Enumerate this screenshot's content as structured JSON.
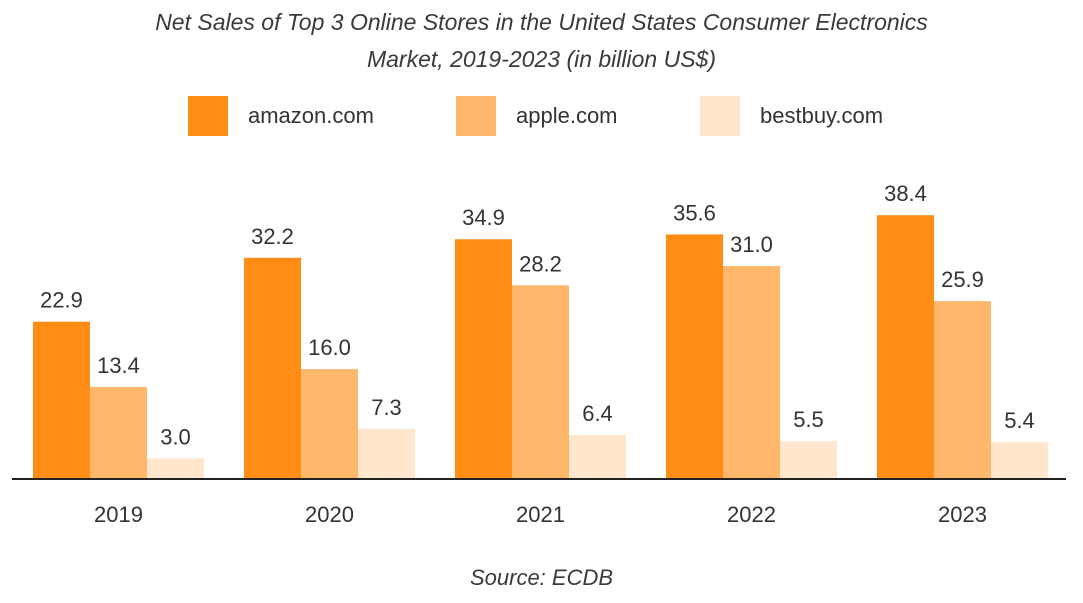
{
  "chart_data": {
    "type": "bar",
    "title_line1": "Net Sales of Top 3 Online Stores in the United States Consumer Electronics",
    "title_line2": "Market, 2019-2023 (in billion US$)",
    "categories": [
      "2019",
      "2020",
      "2021",
      "2022",
      "2023"
    ],
    "series": [
      {
        "name": "amazon.com",
        "color": "#FF8C14",
        "values": [
          22.9,
          32.2,
          34.9,
          35.6,
          38.4
        ],
        "labels": [
          "22.9",
          "32.2",
          "34.9",
          "35.6",
          "38.4"
        ]
      },
      {
        "name": "apple.com",
        "color": "#FFB86B",
        "values": [
          13.4,
          16.0,
          28.2,
          31.0,
          25.9
        ],
        "labels": [
          "13.4",
          "16.0",
          "28.2",
          "31.0",
          "25.9"
        ]
      },
      {
        "name": "bestbuy.com",
        "color": "#FFE6CC",
        "values": [
          3.0,
          7.3,
          6.4,
          5.5,
          5.4
        ],
        "labels": [
          "3.0",
          "7.3",
          "6.4",
          "5.5",
          "5.4"
        ]
      }
    ],
    "ylim": [
      0,
      45
    ],
    "grid": false,
    "legend_position": "top",
    "source": "Source: ECDB"
  }
}
